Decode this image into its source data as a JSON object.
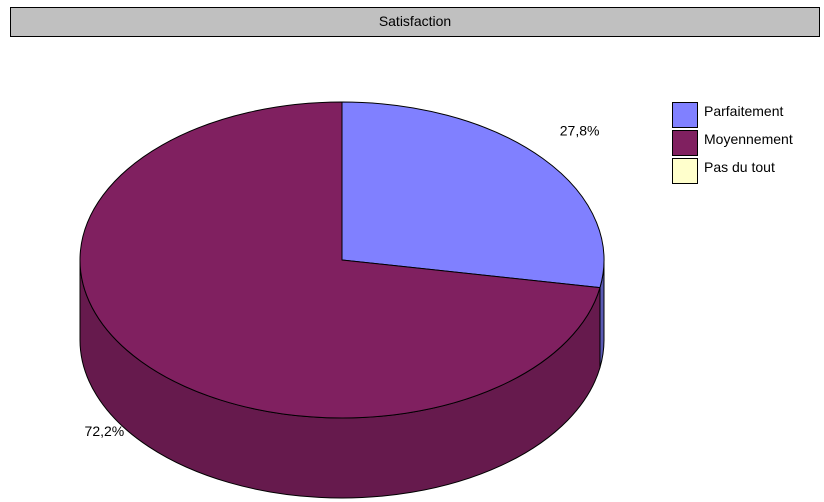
{
  "chart_data": {
    "type": "pie",
    "title": "Satisfaction",
    "categories": [
      "Parfaitement",
      "Moyennement",
      "Pas du tout"
    ],
    "values": [
      27.8,
      72.2,
      0
    ],
    "data_labels": [
      "27,8%",
      "72,2%",
      ""
    ],
    "colors": [
      "#8080ff",
      "#802060",
      "#ffffcc"
    ],
    "side_colors": [
      "#5a5ab4",
      "#661a4d",
      "#cccca3"
    ],
    "legend_position": "right",
    "style": "3d"
  }
}
